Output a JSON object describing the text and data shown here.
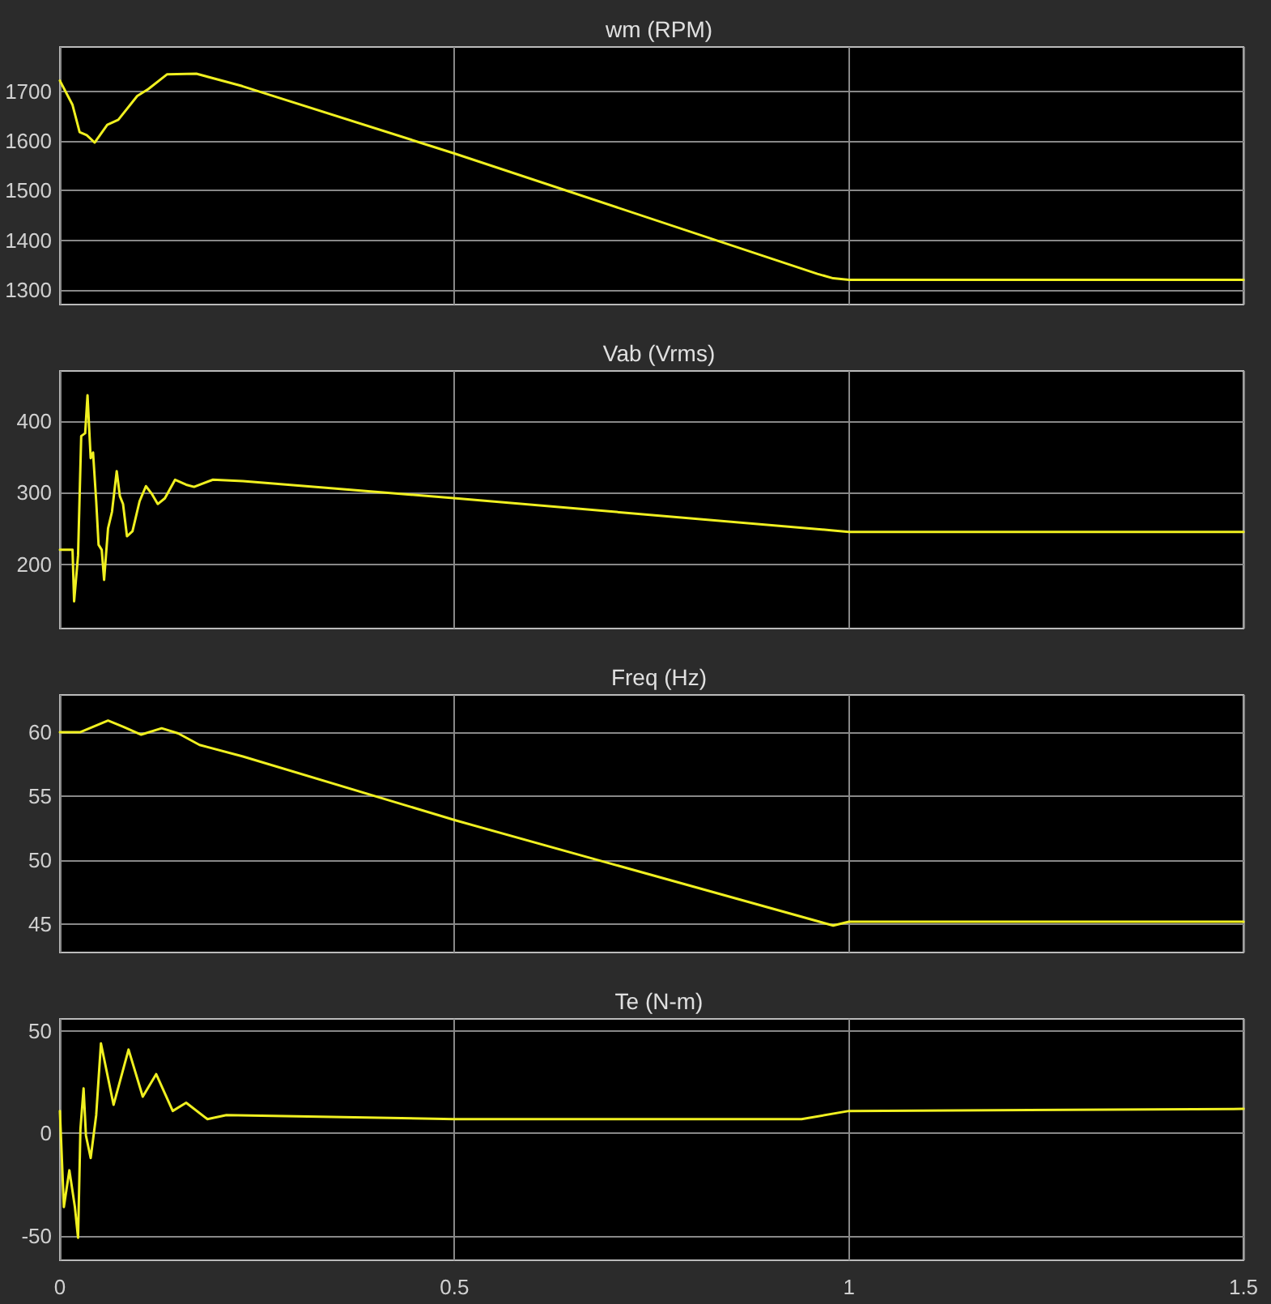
{
  "chart_data": [
    {
      "type": "line",
      "title": "wm (RPM)",
      "xlim": [
        0,
        1.5
      ],
      "xticks": [
        0,
        0.5,
        1,
        1.5
      ],
      "ylim": [
        1270,
        1790
      ],
      "yticks": [
        1300,
        1400,
        1500,
        1600,
        1700
      ],
      "grid": true,
      "tick_labels": "y",
      "line_style": "solid",
      "marker": "none",
      "series": [
        {
          "color": "#f0f020",
          "x": [
            0,
            0.016,
            0.025,
            0.034,
            0.044,
            0.06,
            0.074,
            0.098,
            0.112,
            0.136,
            0.173,
            0.231,
            0.5,
            0.96,
            0.98,
            1.0,
            1.5
          ],
          "values": [
            1722,
            1673,
            1618,
            1612,
            1597,
            1633,
            1643,
            1691,
            1705,
            1735,
            1736,
            1711,
            1575,
            1332,
            1323,
            1320,
            1320
          ]
        }
      ]
    },
    {
      "type": "line",
      "title": "Vab (Vrms)",
      "xlim": [
        0,
        1.5
      ],
      "xticks": [
        0,
        0.5,
        1,
        1.5
      ],
      "ylim": [
        110,
        470
      ],
      "yticks": [
        200,
        300,
        400
      ],
      "grid": true,
      "tick_labels": "y",
      "line_style": "solid",
      "marker": "none",
      "series": [
        {
          "color": "#f0f020",
          "x": [
            0,
            0.016,
            0.018,
            0.023,
            0.027,
            0.032,
            0.035,
            0.039,
            0.042,
            0.046,
            0.049,
            0.053,
            0.056,
            0.061,
            0.066,
            0.072,
            0.076,
            0.08,
            0.085,
            0.092,
            0.101,
            0.109,
            0.116,
            0.124,
            0.133,
            0.146,
            0.16,
            0.17,
            0.194,
            0.232,
            0.334,
            0.502,
            0.98,
            1.0,
            1.5
          ],
          "values": [
            220,
            220,
            148,
            212,
            379,
            383,
            436,
            348,
            356,
            288,
            227,
            220,
            178,
            250,
            273,
            330,
            295,
            284,
            239,
            246,
            288,
            309,
            299,
            284,
            292,
            318,
            311,
            308,
            318,
            316,
            307,
            292,
            247,
            245,
            245
          ]
        }
      ]
    },
    {
      "type": "line",
      "title": "Freq (Hz)",
      "xlim": [
        0,
        1.5
      ],
      "xticks": [
        0,
        0.5,
        1,
        1.5
      ],
      "ylim": [
        42.8,
        62.9
      ],
      "yticks": [
        45,
        50,
        55,
        60
      ],
      "grid": true,
      "tick_labels": "y",
      "line_style": "solid",
      "marker": "none",
      "series": [
        {
          "color": "#f0f020",
          "x": [
            0,
            0.026,
            0.061,
            0.081,
            0.103,
            0.129,
            0.15,
            0.177,
            0.232,
            0.502,
            0.98,
            1.0,
            1.5
          ],
          "values": [
            60,
            60,
            60.9,
            60.4,
            59.8,
            60.3,
            59.9,
            59,
            58.1,
            53.1,
            44.9,
            45.2,
            45.2
          ]
        }
      ]
    },
    {
      "type": "line",
      "title": "Te (N-m)",
      "xlim": [
        0,
        1.5
      ],
      "xticks": [
        0,
        0.5,
        1,
        1.5
      ],
      "ylim": [
        -62,
        56
      ],
      "yticks": [
        -50,
        0,
        50
      ],
      "grid": true,
      "line_style": "solid",
      "marker": "none",
      "series": [
        {
          "color": "#f0f020",
          "x": [
            0,
            0.005,
            0.012,
            0.019,
            0.023,
            0.026,
            0.03,
            0.033,
            0.039,
            0.046,
            0.052,
            0.068,
            0.087,
            0.105,
            0.122,
            0.143,
            0.16,
            0.187,
            0.211,
            0.5,
            0.94,
            1.0,
            1.5
          ],
          "values": [
            11,
            -36,
            -18,
            -36,
            -51,
            2,
            22,
            -1,
            -12,
            9,
            44,
            14,
            41,
            18,
            29,
            11,
            15,
            7,
            9,
            7,
            7,
            11,
            12
          ]
        }
      ]
    }
  ]
}
